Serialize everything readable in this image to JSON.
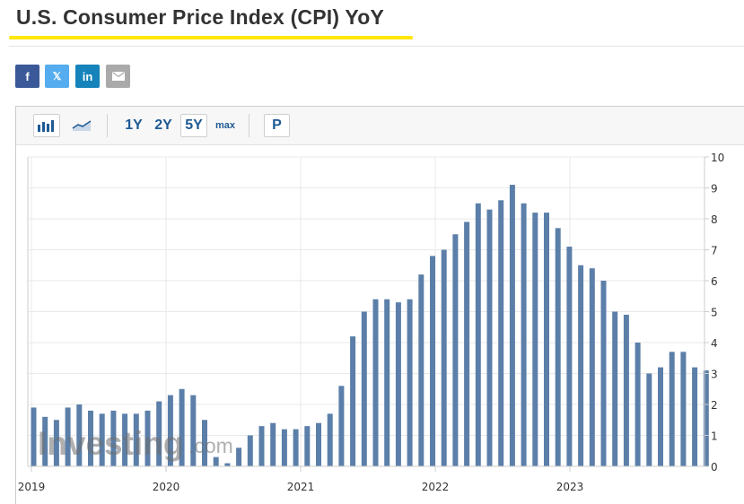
{
  "page": {
    "title": "U.S. Consumer Price Index (CPI) YoY"
  },
  "share": [
    {
      "id": "facebook",
      "label": "f",
      "icon": "facebook-icon",
      "color": "#3b5998"
    },
    {
      "id": "x",
      "label": "𝕏",
      "icon": "x-icon",
      "color": "#55acee"
    },
    {
      "id": "linkedin",
      "label": "in",
      "icon": "linkedin-icon",
      "color": "#1683bb"
    },
    {
      "id": "email",
      "label": "",
      "icon": "email-icon",
      "color": "#aaaaaa"
    }
  ],
  "toolbar": {
    "icons": [
      "bar-chart-icon",
      "line-chart-icon"
    ],
    "ranges": [
      {
        "label": "1Y",
        "selected": false
      },
      {
        "label": "2Y",
        "selected": false
      },
      {
        "label": "5Y",
        "selected": true
      },
      {
        "label": "max",
        "selected": false
      }
    ],
    "p_label": "P"
  },
  "watermark": {
    "brand": "Investing",
    "suffix": ".com"
  },
  "chart_data": {
    "type": "bar",
    "title": "",
    "xlabel": "",
    "ylabel": "",
    "ylim": [
      0,
      10
    ],
    "y_ticks": [
      "0",
      "1",
      "2",
      "3",
      "4",
      "5",
      "6",
      "7",
      "8",
      "9",
      "10"
    ],
    "x_ticks": [
      "2019",
      "2020",
      "2021",
      "2022",
      "2023"
    ],
    "grid": true,
    "colors": {
      "bar": "#5b7fa9",
      "bar_faded": "#b7c7dc",
      "grid": "#e9e9e9",
      "axis": "#cccccc"
    },
    "series": [
      {
        "values": [
          1.9,
          1.6,
          1.5,
          1.9,
          2.0,
          1.8,
          1.7,
          1.8,
          1.7,
          1.7,
          1.8,
          2.1,
          2.3,
          2.5,
          2.3,
          1.5,
          0.3,
          0.1,
          0.6,
          1.0,
          1.3,
          1.4,
          1.2,
          1.2,
          1.3,
          1.4,
          1.7,
          2.6,
          4.2,
          5.0,
          5.4,
          5.4,
          5.3,
          5.4,
          6.2,
          6.8,
          7.0,
          7.5,
          7.9,
          8.5,
          8.3,
          8.6,
          9.1,
          8.5,
          8.2,
          8.2,
          7.7,
          7.1,
          6.5,
          6.4,
          6.0,
          5.0,
          4.9,
          4.0,
          3.0,
          3.2,
          3.7,
          3.7,
          3.2,
          3.1
        ]
      }
    ]
  }
}
